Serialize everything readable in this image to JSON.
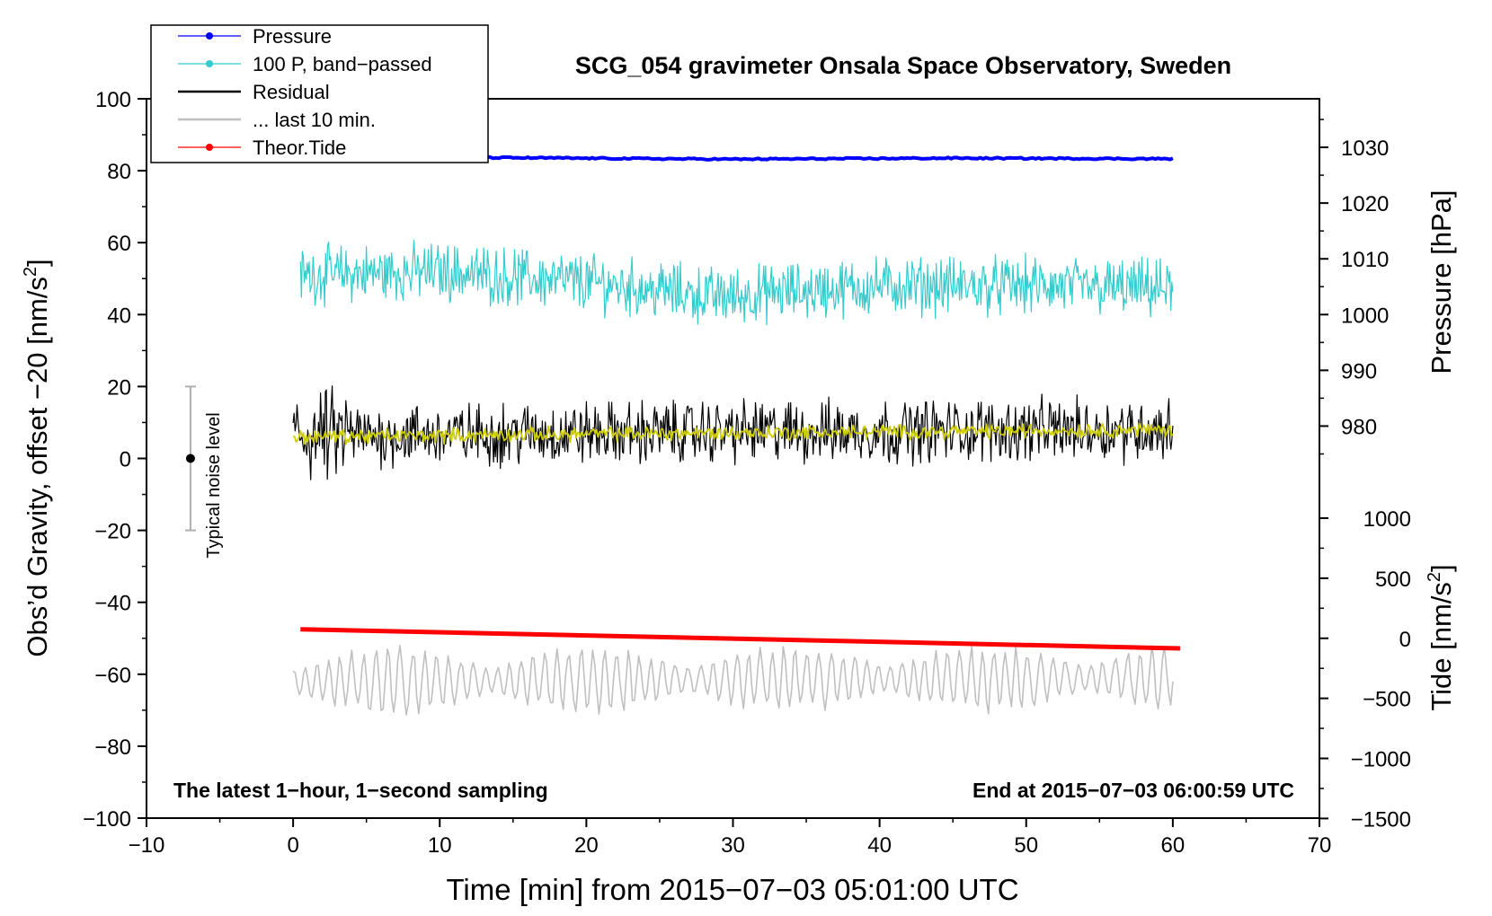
{
  "chart_data": {
    "type": "line",
    "title": "SCG_054 gravimeter Onsala Space Observatory, Sweden",
    "xlabel": "Time [min] from 2015−07−03 05:01:00 UTC",
    "ylabel_left_main": "Obs’d Gravity, offset −20 [nm/s",
    "ylabel_left_sup": "2",
    "ylabel_left_end": "]",
    "ylabel_right_pressure": "Pressure [hPa]",
    "ylabel_right_tide_main": "Tide [nm/s",
    "ylabel_right_tide_sup": "2",
    "ylabel_right_tide_end": "]",
    "xlim": [
      -10,
      70
    ],
    "ylim": [
      -100,
      100
    ],
    "x_ticks": [
      -10,
      0,
      10,
      20,
      30,
      40,
      50,
      60,
      70
    ],
    "x_tick_labels": [
      "−10",
      "0",
      "10",
      "20",
      "30",
      "40",
      "50",
      "60",
      "70"
    ],
    "y_ticks": [
      -100,
      -80,
      -60,
      -40,
      -20,
      0,
      20,
      40,
      60,
      80,
      100
    ],
    "y_tick_labels": [
      "−100",
      "−80",
      "−60",
      "−40",
      "−20",
      "0",
      "20",
      "40",
      "60",
      "80",
      "100"
    ],
    "pressure_axis": {
      "ticks": [
        980,
        990,
        1000,
        1010,
        1020,
        1030
      ],
      "labels": [
        "980",
        "990",
        "1000",
        "1010",
        "1020",
        "1030"
      ],
      "gravity_at_1000": 40,
      "gravity_per_hpa": 1.55
    },
    "tide_axis": {
      "ticks": [
        -1500,
        -1000,
        -500,
        0,
        500,
        1000
      ],
      "labels": [
        "−1500",
        "−1000",
        "−500",
        "0",
        "500",
        "1000"
      ],
      "gravity_at_0": -50,
      "gravity_per_unit": 0.0334
    },
    "legend_position": "top-left",
    "legend": [
      {
        "label": "Pressure",
        "color": "#0000ff",
        "marker": true
      },
      {
        "label": "100 P, band−passed",
        "color": "#33cccc",
        "marker": true
      },
      {
        "label": "Residual",
        "color": "#000000",
        "marker": false
      },
      {
        "label": "... last 10 min.",
        "color": "#c0c0c0",
        "marker": false
      },
      {
        "label": "Theor.Tide",
        "color": "#ff0000",
        "marker": true
      }
    ],
    "annotations": {
      "left": "The latest 1−hour, 1−second sampling",
      "right": "End at 2015−07−03 06:00:59 UTC",
      "noise": "Typical noise level"
    },
    "noise_bar": {
      "x": -7,
      "center": 0,
      "low": -20,
      "high": 20
    },
    "series": [
      {
        "name": "Pressure",
        "color": "#0000ff",
        "kind": "flat",
        "x_start": 0.3,
        "x_end": 60,
        "points": [
          [
            0.3,
            83.8
          ],
          [
            15,
            83.6
          ],
          [
            30,
            83.2
          ],
          [
            45,
            83.5
          ],
          [
            60,
            83.3
          ]
        ],
        "noise": 0.4
      },
      {
        "name": "100 P, band-passed",
        "color": "#33cccc",
        "kind": "noisy",
        "x_start": 0.5,
        "x_end": 60,
        "points": [
          [
            0.5,
            51
          ],
          [
            10,
            52
          ],
          [
            20,
            49
          ],
          [
            29,
            45
          ],
          [
            40,
            48
          ],
          [
            50,
            48
          ],
          [
            60,
            47
          ]
        ],
        "noise": 12,
        "samples": 900
      },
      {
        "name": "Residual",
        "color": "#000000",
        "kind": "noisy",
        "x_start": 0,
        "x_end": 60,
        "points": [
          [
            0,
            6
          ],
          [
            10,
            6.5
          ],
          [
            20,
            7
          ],
          [
            30,
            7.5
          ],
          [
            40,
            7.5
          ],
          [
            50,
            8
          ],
          [
            60,
            8
          ]
        ],
        "noise": 13,
        "samples": 900
      },
      {
        "name": "Residual smoothed",
        "color": "#cccc00",
        "kind": "noisy",
        "x_start": 0,
        "x_end": 60,
        "points": [
          [
            0,
            6
          ],
          [
            20,
            6.8
          ],
          [
            40,
            7.4
          ],
          [
            60,
            8
          ]
        ],
        "noise": 3,
        "samples": 600
      },
      {
        "name": "Theor.Tide",
        "color": "#ff0000",
        "kind": "linear",
        "x_start": 0.5,
        "x_end": 60.5,
        "points": [
          [
            0.5,
            -47.5
          ],
          [
            60.5,
            -52.8
          ]
        ],
        "noise": 0
      },
      {
        "name": "... last 10 min.",
        "color": "#c0c0c0",
        "kind": "wavy",
        "x_start": 0,
        "x_end": 60,
        "points": [
          [
            0,
            -62
          ],
          [
            60,
            -61
          ]
        ],
        "noise": 9,
        "samples": 420
      }
    ]
  }
}
